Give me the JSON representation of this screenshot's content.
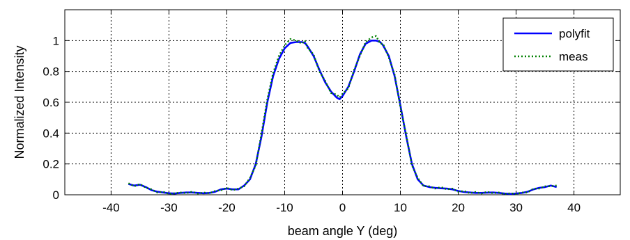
{
  "chart_data": {
    "type": "line",
    "title": "",
    "xlabel": "beam angle Y (deg)",
    "ylabel": "Normalized Intensity",
    "xlim": [
      -48,
      48
    ],
    "ylim": [
      0,
      1.2
    ],
    "xticks": [
      -40,
      -30,
      -20,
      -10,
      0,
      10,
      20,
      30,
      40
    ],
    "yticks": [
      0,
      0.2,
      0.4,
      0.6,
      0.8,
      1
    ],
    "xtick_labels": [
      "-40",
      "-30",
      "-20",
      "-10",
      "0",
      "10",
      "20",
      "30",
      "40"
    ],
    "ytick_labels": [
      "0",
      "0.2",
      "0.4",
      "0.6",
      "0.8",
      "1"
    ],
    "grid": true,
    "legend_position": "top-right",
    "colors": {
      "polyfit": "#0000ff",
      "meas": "#008000"
    },
    "series": [
      {
        "name": "polyfit",
        "style": "solid",
        "x": [
          -37,
          -36,
          -35,
          -34,
          -33,
          -32,
          -31,
          -30,
          -29,
          -28,
          -27,
          -26,
          -25,
          -24,
          -23,
          -22,
          -21,
          -20,
          -19,
          -18,
          -17,
          -16,
          -15,
          -14,
          -13,
          -12,
          -11,
          -10,
          -9,
          -8,
          -7,
          -6.5,
          -6,
          -5,
          -4,
          -3,
          -2,
          -1,
          -0.5,
          0,
          1,
          2,
          3,
          4,
          5,
          5.8,
          6.5,
          7,
          8,
          9,
          10,
          11,
          12,
          13,
          14,
          15,
          16,
          17,
          18,
          19,
          20,
          21,
          22,
          23,
          24,
          25,
          26,
          27,
          28,
          29,
          30,
          31,
          32,
          33,
          34,
          35,
          36,
          37
        ],
        "y": [
          0.07,
          0.06,
          0.065,
          0.05,
          0.03,
          0.02,
          0.015,
          0.01,
          0.008,
          0.012,
          0.015,
          0.015,
          0.012,
          0.01,
          0.012,
          0.02,
          0.035,
          0.04,
          0.035,
          0.035,
          0.06,
          0.1,
          0.2,
          0.38,
          0.6,
          0.77,
          0.88,
          0.95,
          0.985,
          0.99,
          0.99,
          0.985,
          0.96,
          0.9,
          0.81,
          0.73,
          0.67,
          0.63,
          0.62,
          0.64,
          0.7,
          0.8,
          0.91,
          0.98,
          1.0,
          1.0,
          0.99,
          0.97,
          0.9,
          0.77,
          0.58,
          0.38,
          0.2,
          0.1,
          0.06,
          0.05,
          0.045,
          0.042,
          0.04,
          0.035,
          0.025,
          0.018,
          0.015,
          0.012,
          0.012,
          0.014,
          0.015,
          0.012,
          0.008,
          0.006,
          0.008,
          0.012,
          0.02,
          0.035,
          0.045,
          0.05,
          0.06,
          0.05
        ]
      },
      {
        "name": "meas",
        "style": "dotted",
        "x": [
          -37,
          -36,
          -35,
          -34,
          -33,
          -32,
          -31,
          -30,
          -29,
          -28,
          -27,
          -26,
          -25,
          -24,
          -23,
          -22,
          -21,
          -20,
          -19,
          -18,
          -17,
          -16,
          -15,
          -14,
          -13,
          -12,
          -11,
          -10,
          -9,
          -8,
          -7,
          -6.5,
          -6,
          -5,
          -4,
          -3,
          -2,
          -1,
          -0.5,
          0,
          1,
          2,
          3,
          4,
          5,
          5.8,
          6.5,
          7,
          8,
          9,
          10,
          11,
          12,
          13,
          14,
          15,
          16,
          17,
          18,
          19,
          20,
          21,
          22,
          23,
          24,
          25,
          26,
          27,
          28,
          29,
          30,
          31,
          32,
          33,
          34,
          35,
          36,
          37
        ],
        "y": [
          0.075,
          0.055,
          0.07,
          0.045,
          0.035,
          0.015,
          0.02,
          0.005,
          0.01,
          0.015,
          0.01,
          0.02,
          0.008,
          0.015,
          0.01,
          0.025,
          0.03,
          0.045,
          0.03,
          0.04,
          0.055,
          0.11,
          0.19,
          0.4,
          0.62,
          0.79,
          0.9,
          0.97,
          1.01,
          1.0,
          0.98,
          1.0,
          0.95,
          0.91,
          0.8,
          0.74,
          0.66,
          0.65,
          0.63,
          0.655,
          0.69,
          0.81,
          0.9,
          0.99,
          1.02,
          1.03,
          0.98,
          0.98,
          0.89,
          0.78,
          0.57,
          0.39,
          0.19,
          0.11,
          0.055,
          0.055,
          0.04,
          0.05,
          0.035,
          0.04,
          0.02,
          0.025,
          0.01,
          0.018,
          0.008,
          0.02,
          0.01,
          0.015,
          0.005,
          0.01,
          0.005,
          0.015,
          0.015,
          0.04,
          0.04,
          0.055,
          0.055,
          0.06
        ]
      }
    ]
  }
}
